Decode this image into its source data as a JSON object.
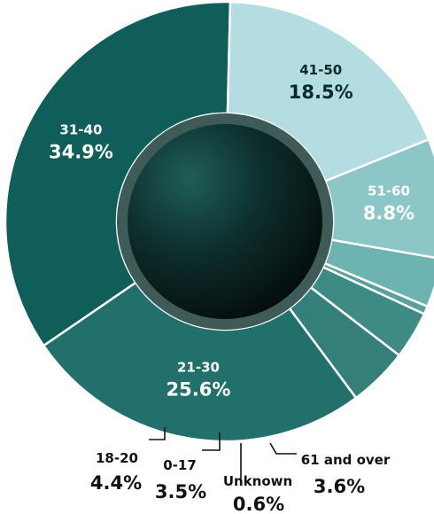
{
  "chart_data": {
    "type": "pie",
    "slices": [
      {
        "label": "31-40",
        "value": 34.9,
        "display": "34.9%",
        "color": "#0f5e5a",
        "text_color": "#ffffff"
      },
      {
        "label": "41-50",
        "value": 18.5,
        "display": "18.5%",
        "color": "#b3dde0",
        "text_color": "#0a2a2a"
      },
      {
        "label": "51-60",
        "value": 8.8,
        "display": "8.8%",
        "color": "#8cc6c6",
        "text_color": "#ffffff"
      },
      {
        "label": "61 and over",
        "value": 3.6,
        "display": "3.6%",
        "color": "#6db3b1",
        "text_color": "#111111"
      },
      {
        "label": "Unknown",
        "value": 0.6,
        "display": "0.6%",
        "color": "#5aa19e",
        "text_color": "#111111"
      },
      {
        "label": "0-17",
        "value": 3.5,
        "display": "3.5%",
        "color": "#3e8b86",
        "text_color": "#111111"
      },
      {
        "label": "18-20",
        "value": 4.4,
        "display": "4.4%",
        "color": "#347f7a",
        "text_color": "#111111"
      },
      {
        "label": "21-30",
        "value": 25.6,
        "display": "25.6%",
        "color": "#21706b",
        "text_color": "#ffffff"
      }
    ],
    "legend": "none",
    "donut": true
  }
}
